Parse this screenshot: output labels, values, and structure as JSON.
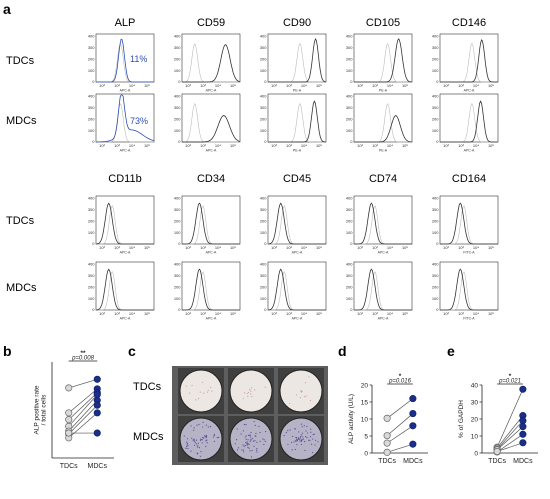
{
  "panel_a": {
    "label": "a",
    "top_markers": [
      "ALP",
      "CD59",
      "CD90",
      "CD105",
      "CD146"
    ],
    "bottom_markers": [
      "CD11b",
      "CD34",
      "CD45",
      "CD74",
      "CD164"
    ],
    "row_labels": [
      "TDCs",
      "MDCs"
    ],
    "top_axis_labels": [
      "APC-A",
      "APC-A",
      "PE-A",
      "PE-A",
      "APC-A"
    ],
    "bottom_axis_labels": [
      "APC-A",
      "APC-A",
      "APC-A",
      "APC-A",
      "FITC-A"
    ],
    "alp_percent_tdc": "11%",
    "alp_percent_mdc": "73%",
    "y_ticks": [
      "0",
      "100",
      "200",
      "300",
      "400"
    ],
    "x_ticks": [
      "10³",
      "10³",
      "10⁴",
      "10⁵"
    ]
  },
  "panel_b": {
    "label": "b",
    "ylabel": "ALP positive rate\n/ total cells",
    "significance": "**",
    "pvalue": "p=0.008"
  },
  "panel_c": {
    "label": "c",
    "row_labels": [
      "TDCs",
      "MDCs"
    ]
  },
  "panel_d": {
    "label": "d",
    "ylabel": "ALP activity (U/L)",
    "significance": "*",
    "pvalue": "p=0.016"
  },
  "panel_e": {
    "label": "e",
    "ylabel": "% of GAPDH",
    "significance": "*",
    "pvalue": "p=0.021"
  },
  "chart_data": [
    {
      "type": "line",
      "panel": "b",
      "categories": [
        "TDCs",
        "MDCs"
      ],
      "ylim": [
        0,
        1
      ],
      "yticks": [],
      "series": [
        {
          "values": [
            0.73,
            0.82
          ]
        },
        {
          "values": [
            0.47,
            0.72
          ]
        },
        {
          "values": [
            0.4,
            0.68
          ]
        },
        {
          "values": [
            0.33,
            0.66
          ]
        },
        {
          "values": [
            0.28,
            0.6
          ]
        },
        {
          "values": [
            0.25,
            0.55
          ]
        },
        {
          "values": [
            0.21,
            0.47
          ]
        },
        {
          "values": [
            0.26,
            0.26
          ]
        }
      ]
    },
    {
      "type": "line",
      "panel": "d",
      "categories": [
        "TDCs",
        "MDCs"
      ],
      "ylim": [
        0,
        20
      ],
      "yticks": [
        "0",
        "5",
        "10",
        "15",
        "20"
      ],
      "series": [
        {
          "values": [
            10.2,
            16.0
          ]
        },
        {
          "values": [
            5.1,
            11.6
          ]
        },
        {
          "values": [
            2.9,
            8.0
          ]
        },
        {
          "values": [
            0.2,
            2.6
          ]
        }
      ]
    },
    {
      "type": "line",
      "panel": "e",
      "categories": [
        "TDCs",
        "MDCs"
      ],
      "ylim": [
        0,
        40
      ],
      "yticks": [
        "0",
        "10",
        "20",
        "30",
        "40"
      ],
      "series": [
        {
          "values": [
            3.4,
            37.5
          ]
        },
        {
          "values": [
            2.9,
            22.0
          ]
        },
        {
          "values": [
            2.2,
            19.0
          ]
        },
        {
          "values": [
            1.9,
            15.5
          ]
        },
        {
          "values": [
            0.6,
            11.0
          ]
        },
        {
          "values": [
            0.9,
            6.0
          ]
        }
      ]
    }
  ]
}
